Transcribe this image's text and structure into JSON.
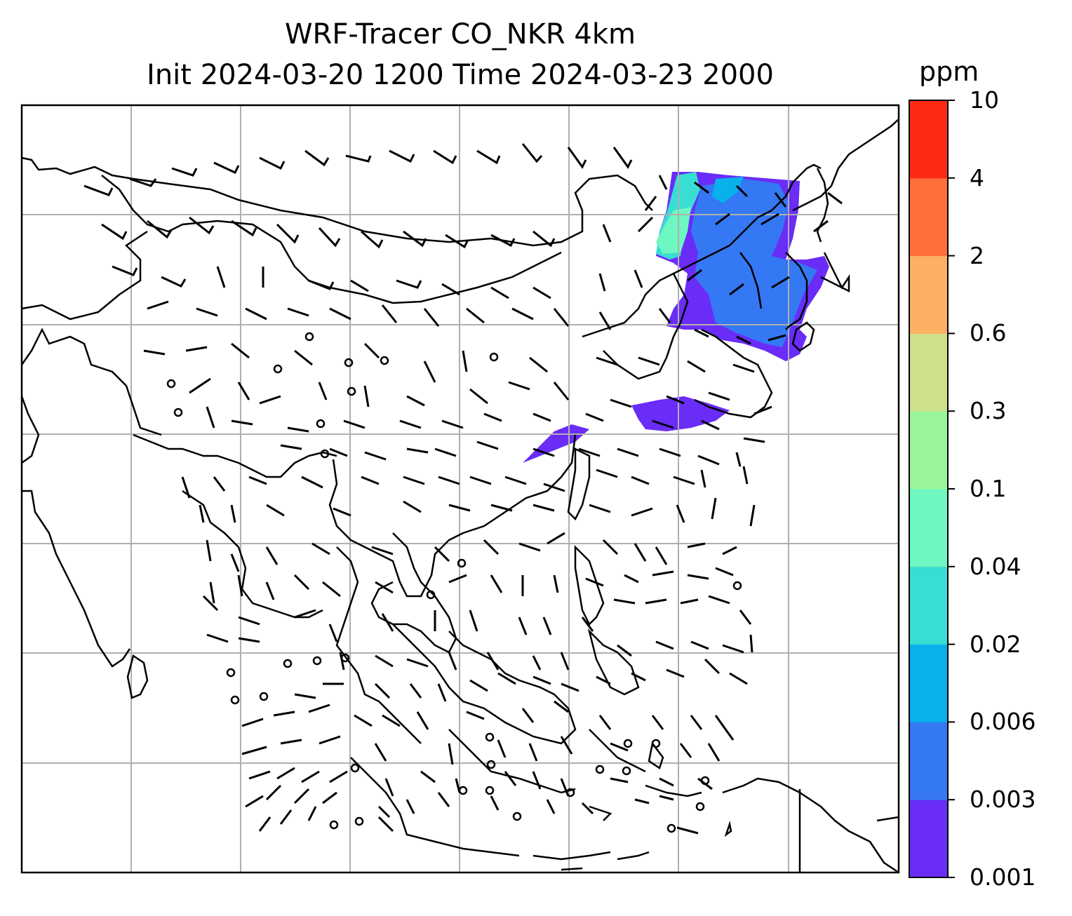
{
  "title": {
    "line1": "WRF-Tracer CO_NKR 4km",
    "line2": "Init 2024-03-20 1200 Time 2024-03-23 2000"
  },
  "colorbar": {
    "unit_label": "ppm",
    "ticks": [
      "0.001",
      "0.003",
      "0.006",
      "0.02",
      "0.04",
      "0.1",
      "0.3",
      "0.6",
      "2",
      "4",
      "10"
    ],
    "colors": [
      "#6a2cf7",
      "#3478f3",
      "#08b0ec",
      "#38ddd3",
      "#6ef7c0",
      "#99f59a",
      "#cfe08a",
      "#fbb064",
      "#ff6f3a",
      "#ff2a14"
    ]
  },
  "map": {
    "gridlines": true,
    "plume_colors": {
      "outer": "#6a2cf7",
      "mid": "#3478f3",
      "inner": "#08b0ec",
      "edge": "#38ddd3",
      "edge2": "#6ef7c0"
    },
    "wind_barb_color": "#000000",
    "coastline_color": "#000000",
    "grid_color": "#b0b0b0"
  }
}
